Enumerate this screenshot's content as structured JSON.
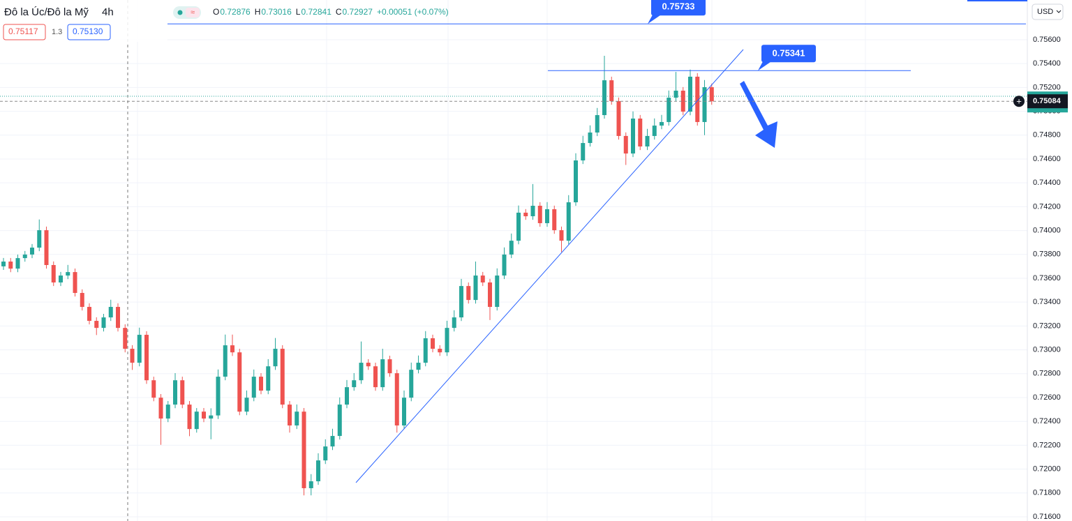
{
  "chart_data": {
    "type": "candlestick",
    "symbol": "Đô la Úc/Đô la Mỹ",
    "interval": "4h",
    "ohlc_legend": [
      {
        "label": "O",
        "value": "0.72876"
      },
      {
        "label": "H",
        "value": "0.73016"
      },
      {
        "label": "L",
        "value": "0.72841"
      },
      {
        "label": "C",
        "value": "0.72927"
      }
    ],
    "change": "+0.00051 (+0.07%)",
    "bid": "0.75117",
    "spread": "1.3",
    "ask": "0.75130",
    "currency": "USD",
    "up_color": "#26a69a",
    "down_color": "#ef5350",
    "last_price": {
      "value": 0.75084,
      "label": "0.75084"
    },
    "price_lines": [
      {
        "value": 0.75733,
        "label": "0.75733"
      },
      {
        "value": 0.75341,
        "label": "0.75341"
      }
    ],
    "ylim": [
      0.71565,
      0.75933
    ],
    "yticks": [
      {
        "value": 0.756,
        "label": "0.75600"
      },
      {
        "value": 0.754,
        "label": "0.75400"
      },
      {
        "value": 0.752,
        "label": "0.75200"
      },
      {
        "value": 0.75,
        "label": "0.75000"
      },
      {
        "value": 0.748,
        "label": "0.74800"
      },
      {
        "value": 0.746,
        "label": "0.74600"
      },
      {
        "value": 0.744,
        "label": "0.74400"
      },
      {
        "value": 0.742,
        "label": "0.74200"
      },
      {
        "value": 0.74,
        "label": "0.74000"
      },
      {
        "value": 0.738,
        "label": "0.73800"
      },
      {
        "value": 0.736,
        "label": "0.73600"
      },
      {
        "value": 0.734,
        "label": "0.73400"
      },
      {
        "value": 0.732,
        "label": "0.73200"
      },
      {
        "value": 0.73,
        "label": "0.73000"
      },
      {
        "value": 0.728,
        "label": "0.72800"
      },
      {
        "value": 0.726,
        "label": "0.72600"
      },
      {
        "value": 0.724,
        "label": "0.72400"
      },
      {
        "value": 0.722,
        "label": "0.72200"
      },
      {
        "value": 0.72,
        "label": "0.72000"
      },
      {
        "value": 0.718,
        "label": "0.71800"
      },
      {
        "value": 0.716,
        "label": "0.71600"
      }
    ],
    "open": [
      0.737,
      0.7374,
      0.73681,
      0.73769,
      0.73799,
      0.73857,
      0.74003,
      0.73711,
      0.73565,
      0.73623,
      0.73652,
      0.73477,
      0.7336,
      0.73243,
      0.73184,
      0.73272,
      0.7336,
      0.73184,
      0.73009,
      0.72892,
      0.73126,
      0.72745,
      0.72599,
      0.72424,
      0.72541,
      0.72745,
      0.72541,
      0.72336,
      0.72482,
      0.72424,
      0.7245,
      0.72775,
      0.73038,
      0.72979,
      0.72482,
      0.72599,
      0.72775,
      0.72658,
      0.72862,
      0.73009,
      0.72541,
      0.72366,
      0.72482,
      0.7184,
      0.71898,
      0.72073,
      0.7219,
      0.72278,
      0.72541,
      0.72687,
      0.72745,
      0.72892,
      0.72862,
      0.72687,
      0.72921,
      0.72804,
      0.72366,
      0.72599,
      0.72833,
      0.72892,
      0.73097,
      0.73009,
      0.72979,
      0.73184,
      0.73272,
      0.73535,
      0.73418,
      0.73623,
      0.73565,
      0.7336,
      0.73623,
      0.73799,
      0.73915,
      0.7415,
      0.7412,
      0.74208,
      0.74062,
      0.74179,
      0.74003,
      0.73915,
      0.74237,
      0.74588,
      0.74734,
      0.74822,
      0.74968,
      0.7526,
      0.75085,
      0.74793,
      0.74646,
      0.74939,
      0.74705,
      0.74793,
      0.7488,
      0.7491,
      0.75114,
      0.75173,
      0.74997,
      0.7529,
      0.7491,
      0.75202
    ],
    "high": [
      0.7377,
      0.7377,
      0.73799,
      0.73829,
      0.73887,
      0.74093,
      0.74033,
      0.73741,
      0.73653,
      0.73712,
      0.73682,
      0.73507,
      0.7339,
      0.73273,
      0.73302,
      0.7342,
      0.7339,
      0.73214,
      0.73039,
      0.73186,
      0.73156,
      0.72775,
      0.72629,
      0.72571,
      0.72805,
      0.72775,
      0.72571,
      0.72512,
      0.72512,
      0.7251,
      0.72835,
      0.73128,
      0.73128,
      0.73009,
      0.72659,
      0.72835,
      0.72805,
      0.72922,
      0.73099,
      0.73039,
      0.72571,
      0.72542,
      0.72512,
      0.71958,
      0.72133,
      0.7225,
      0.72338,
      0.72601,
      0.72747,
      0.72805,
      0.7307,
      0.72922,
      0.72892,
      0.73009,
      0.72951,
      0.72834,
      0.72659,
      0.72893,
      0.72952,
      0.73157,
      0.73127,
      0.73039,
      0.73244,
      0.73332,
      0.73595,
      0.73565,
      0.7374,
      0.73653,
      0.73595,
      0.73683,
      0.73859,
      0.73975,
      0.7421,
      0.7418,
      0.7439,
      0.74238,
      0.74239,
      0.74209,
      0.74033,
      0.74297,
      0.74648,
      0.74794,
      0.74882,
      0.75028,
      0.75465,
      0.7529,
      0.75115,
      0.74823,
      0.74999,
      0.74969,
      0.74853,
      0.7494,
      0.7497,
      0.75174,
      0.7533,
      0.75203,
      0.7535,
      0.7532,
      0.75262,
      0.75232
    ],
    "low": [
      0.7367,
      0.73651,
      0.73651,
      0.73739,
      0.73769,
      0.73827,
      0.73681,
      0.73535,
      0.73535,
      0.73593,
      0.73447,
      0.7333,
      0.73213,
      0.73124,
      0.73154,
      0.73242,
      0.73154,
      0.72979,
      0.72832,
      0.72862,
      0.72715,
      0.72569,
      0.72204,
      0.72394,
      0.72511,
      0.72511,
      0.72276,
      0.72306,
      0.72394,
      0.7225,
      0.7242,
      0.72745,
      0.72949,
      0.72452,
      0.72452,
      0.72569,
      0.72628,
      0.72628,
      0.72832,
      0.72511,
      0.72306,
      0.72336,
      0.7178,
      0.7178,
      0.71868,
      0.72043,
      0.7216,
      0.72248,
      0.72511,
      0.72657,
      0.72715,
      0.72832,
      0.72657,
      0.72657,
      0.72774,
      0.72306,
      0.72336,
      0.72569,
      0.72803,
      0.72862,
      0.72979,
      0.72949,
      0.72949,
      0.73154,
      0.73242,
      0.73388,
      0.73388,
      0.73535,
      0.7325,
      0.7333,
      0.73593,
      0.73769,
      0.73885,
      0.7409,
      0.7409,
      0.74032,
      0.74032,
      0.73973,
      0.7382,
      0.73885,
      0.74207,
      0.74558,
      0.74704,
      0.74792,
      0.74938,
      0.75055,
      0.74763,
      0.7455,
      0.74616,
      0.74675,
      0.74675,
      0.74763,
      0.7485,
      0.7488,
      0.75084,
      0.74967,
      0.74967,
      0.7488,
      0.748,
      0.75055
    ],
    "close": [
      0.7374,
      0.73681,
      0.73769,
      0.73799,
      0.73857,
      0.74003,
      0.73711,
      0.73565,
      0.73623,
      0.73652,
      0.73477,
      0.7336,
      0.73243,
      0.73184,
      0.73272,
      0.7336,
      0.73184,
      0.73009,
      0.72892,
      0.73126,
      0.72745,
      0.72599,
      0.72424,
      0.72541,
      0.72745,
      0.72541,
      0.72336,
      0.72482,
      0.72424,
      0.7245,
      0.72775,
      0.73038,
      0.72979,
      0.72482,
      0.72599,
      0.72775,
      0.72658,
      0.72862,
      0.73009,
      0.72541,
      0.72366,
      0.72482,
      0.7184,
      0.71898,
      0.72073,
      0.7219,
      0.72278,
      0.72541,
      0.72687,
      0.72745,
      0.72892,
      0.72862,
      0.72687,
      0.72921,
      0.72804,
      0.72366,
      0.72599,
      0.72833,
      0.72892,
      0.73097,
      0.73009,
      0.72979,
      0.73184,
      0.73272,
      0.73535,
      0.73418,
      0.73623,
      0.73565,
      0.7336,
      0.73623,
      0.73799,
      0.73915,
      0.7415,
      0.7412,
      0.74208,
      0.74062,
      0.74179,
      0.74003,
      0.73915,
      0.74237,
      0.74588,
      0.74734,
      0.74822,
      0.74968,
      0.7526,
      0.75085,
      0.74793,
      0.74646,
      0.74939,
      0.74705,
      0.74793,
      0.7488,
      0.7491,
      0.75114,
      0.75173,
      0.74997,
      0.7529,
      0.7491,
      0.75202,
      0.75084
    ]
  }
}
